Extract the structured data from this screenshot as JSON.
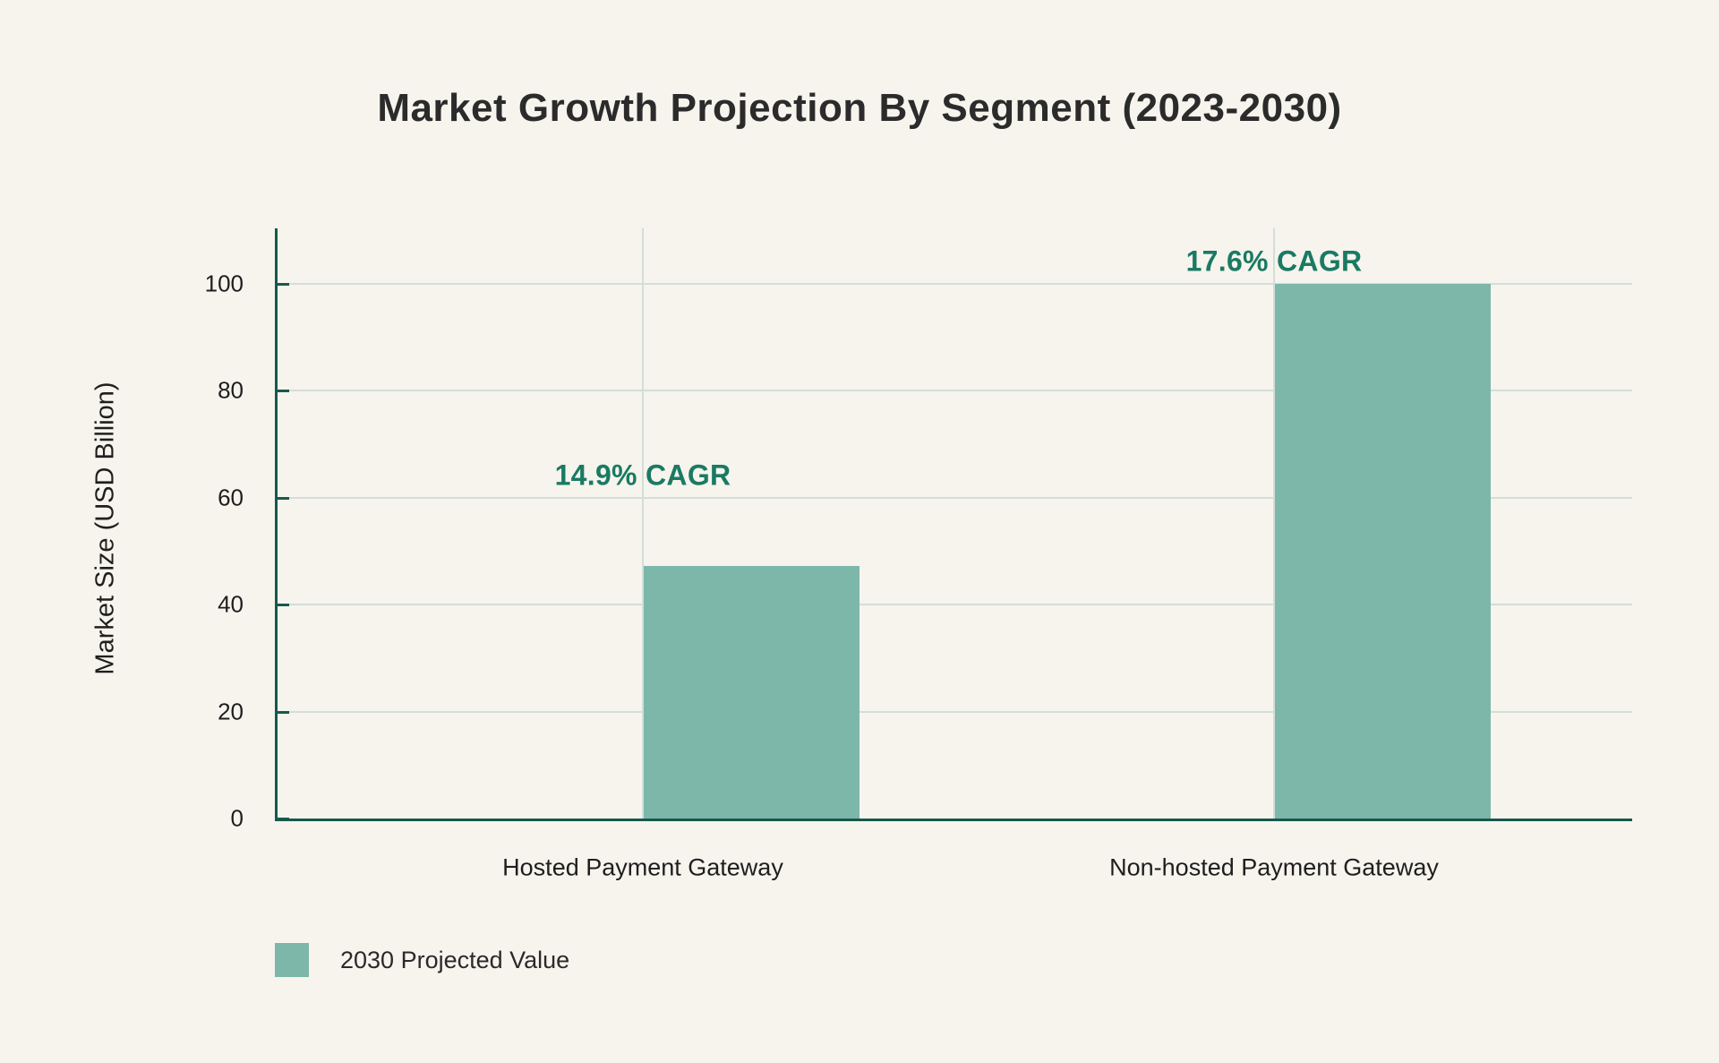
{
  "title": "Market Growth Projection By Segment (2023-2030)",
  "chart_data": {
    "type": "bar",
    "title": "Market Growth Projection By Segment (2023-2030)",
    "categories": [
      "Hosted Payment Gateway",
      "Non-hosted Payment Gateway"
    ],
    "series": [
      {
        "name": "2030 Projected Value",
        "values": [
          47.2,
          100
        ]
      }
    ],
    "xlabel": "",
    "ylabel": "Market Size (USD Billion)",
    "ylim": [
      0,
      110
    ],
    "yticks": [
      0,
      20,
      40,
      60,
      80,
      100
    ],
    "grid": true,
    "legend_position": "bottom-left",
    "annotations": [
      {
        "text": "14.9% CAGR",
        "category_index": 0,
        "at_value": 64.2
      },
      {
        "text": "17.6% CAGR",
        "category_index": 1,
        "at_value": 104.2
      }
    ],
    "colors": {
      "bar": "#7cb7aa",
      "grid": "#d3ded8",
      "axis": "#17594b",
      "annotation": "#1a7a63",
      "background": "#f6f4ed",
      "text": "#2b2b2b"
    }
  },
  "legend": {
    "items": [
      {
        "label": "2030 Projected Value",
        "swatch_color": "#7cb7aa"
      }
    ]
  }
}
